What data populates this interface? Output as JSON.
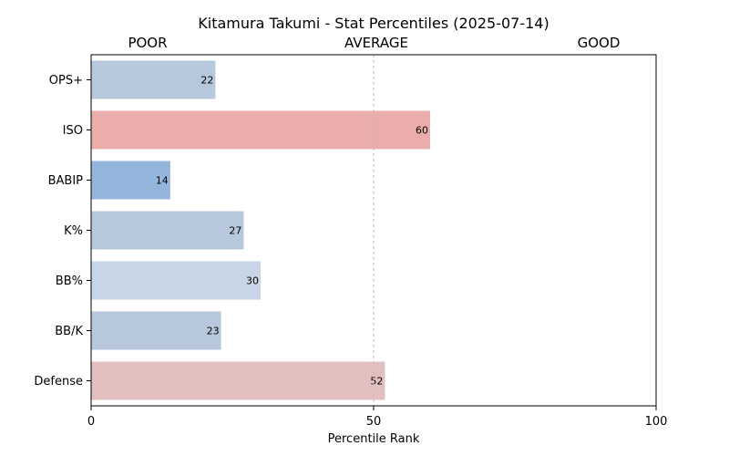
{
  "chart_data": {
    "type": "bar",
    "orientation": "horizontal",
    "title": "Kitamura Takumi - Stat Percentiles (2025-07-14)",
    "band_labels": [
      "POOR",
      "AVERAGE",
      "GOOD"
    ],
    "xlabel": "Percentile Rank",
    "ylabel": "",
    "xlim": [
      0,
      100
    ],
    "xticks": [
      0,
      50,
      100
    ],
    "reference_line": 50,
    "grid": false,
    "legend": "none",
    "categories": [
      "OPS+",
      "ISO",
      "BABIP",
      "K%",
      "BB%",
      "BB/K",
      "Defense"
    ],
    "values": [
      22,
      60,
      14,
      27,
      30,
      23,
      52
    ],
    "colors": [
      "#b7c8dc",
      "#ebacac",
      "#94b6dc",
      "#b7c8dc",
      "#c7d5e6",
      "#b7c8dc",
      "#e4bfbf"
    ]
  }
}
